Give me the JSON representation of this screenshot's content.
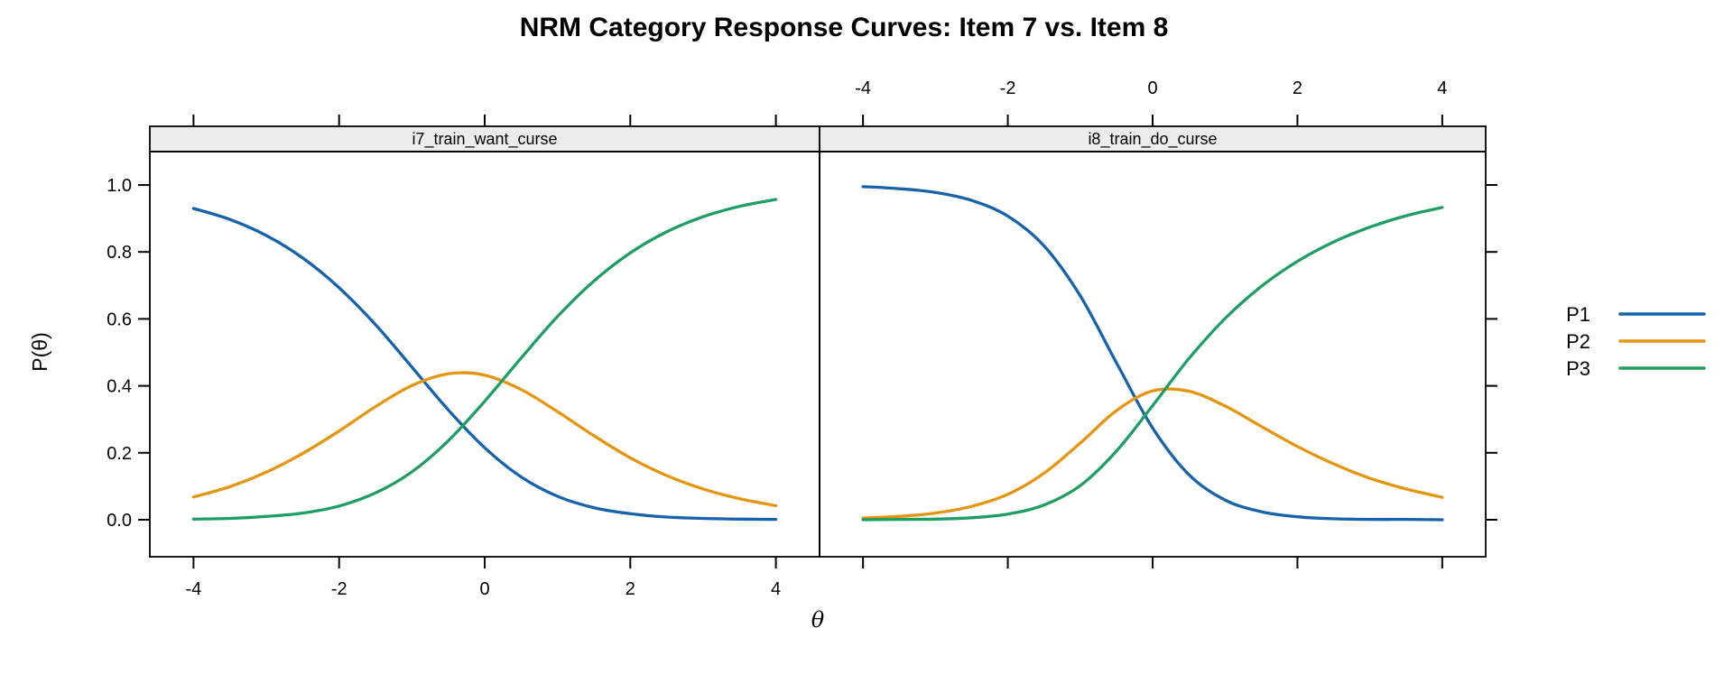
{
  "chart_data": {
    "type": "line",
    "title": "NRM Category Response Curves: Item 7 vs. Item 8",
    "xlabel": "θ",
    "ylabel": "P(θ)",
    "xlim": [
      -4.6,
      4.6
    ],
    "ylim": [
      -0.11,
      1.11
    ],
    "x_ticks": [
      -4,
      -2,
      0,
      2,
      4
    ],
    "y_ticks": [
      0.0,
      0.2,
      0.4,
      0.6,
      0.8,
      1.0
    ],
    "grid": "off",
    "legend_position": "right",
    "strip_fill": "#ececec",
    "x": [
      -4.0,
      -3.5,
      -3.0,
      -2.5,
      -2.0,
      -1.5,
      -1.0,
      -0.5,
      0.0,
      0.5,
      1.0,
      1.5,
      2.0,
      2.5,
      3.0,
      3.5,
      4.0
    ],
    "panels": [
      {
        "strip_label": "i7_train_want_curse",
        "series": [
          {
            "name": "P1",
            "color": "#1763ab",
            "values": [
              0.93,
              0.897,
              0.849,
              0.782,
              0.693,
              0.583,
              0.456,
              0.328,
              0.215,
              0.128,
              0.07,
              0.036,
              0.018,
              0.008,
              0.004,
              0.002,
              0.001
            ]
          },
          {
            "name": "P2",
            "color": "#e6950f",
            "values": [
              0.068,
              0.099,
              0.142,
              0.198,
              0.265,
              0.338,
              0.401,
              0.436,
              0.432,
              0.389,
              0.323,
              0.251,
              0.185,
              0.132,
              0.092,
              0.063,
              0.042
            ]
          },
          {
            "name": "P3",
            "color": "#1e9e64",
            "values": [
              0.002,
              0.004,
              0.01,
              0.02,
              0.041,
              0.08,
              0.143,
              0.236,
              0.354,
              0.483,
              0.607,
              0.713,
              0.797,
              0.86,
              0.905,
              0.936,
              0.957
            ]
          }
        ]
      },
      {
        "strip_label": "i8_train_do_curse",
        "series": [
          {
            "name": "P1",
            "color": "#1763ab",
            "values": [
              0.995,
              0.989,
              0.978,
              0.954,
              0.907,
              0.818,
              0.669,
              0.469,
              0.274,
              0.135,
              0.059,
              0.024,
              0.009,
              0.003,
              0.001,
              0.001,
              0.0
            ]
          },
          {
            "name": "P2",
            "color": "#e6950f",
            "values": [
              0.005,
              0.01,
              0.02,
              0.04,
              0.076,
              0.139,
              0.229,
              0.326,
              0.385,
              0.384,
              0.34,
              0.279,
              0.219,
              0.167,
              0.124,
              0.092,
              0.067
            ]
          },
          {
            "name": "P3",
            "color": "#1e9e64",
            "values": [
              0.0,
              0.001,
              0.002,
              0.006,
              0.017,
              0.044,
              0.102,
              0.205,
              0.341,
              0.481,
              0.601,
              0.697,
              0.772,
              0.83,
              0.874,
              0.908,
              0.933
            ]
          }
        ]
      }
    ],
    "legend": [
      "P1",
      "P2",
      "P3"
    ]
  }
}
